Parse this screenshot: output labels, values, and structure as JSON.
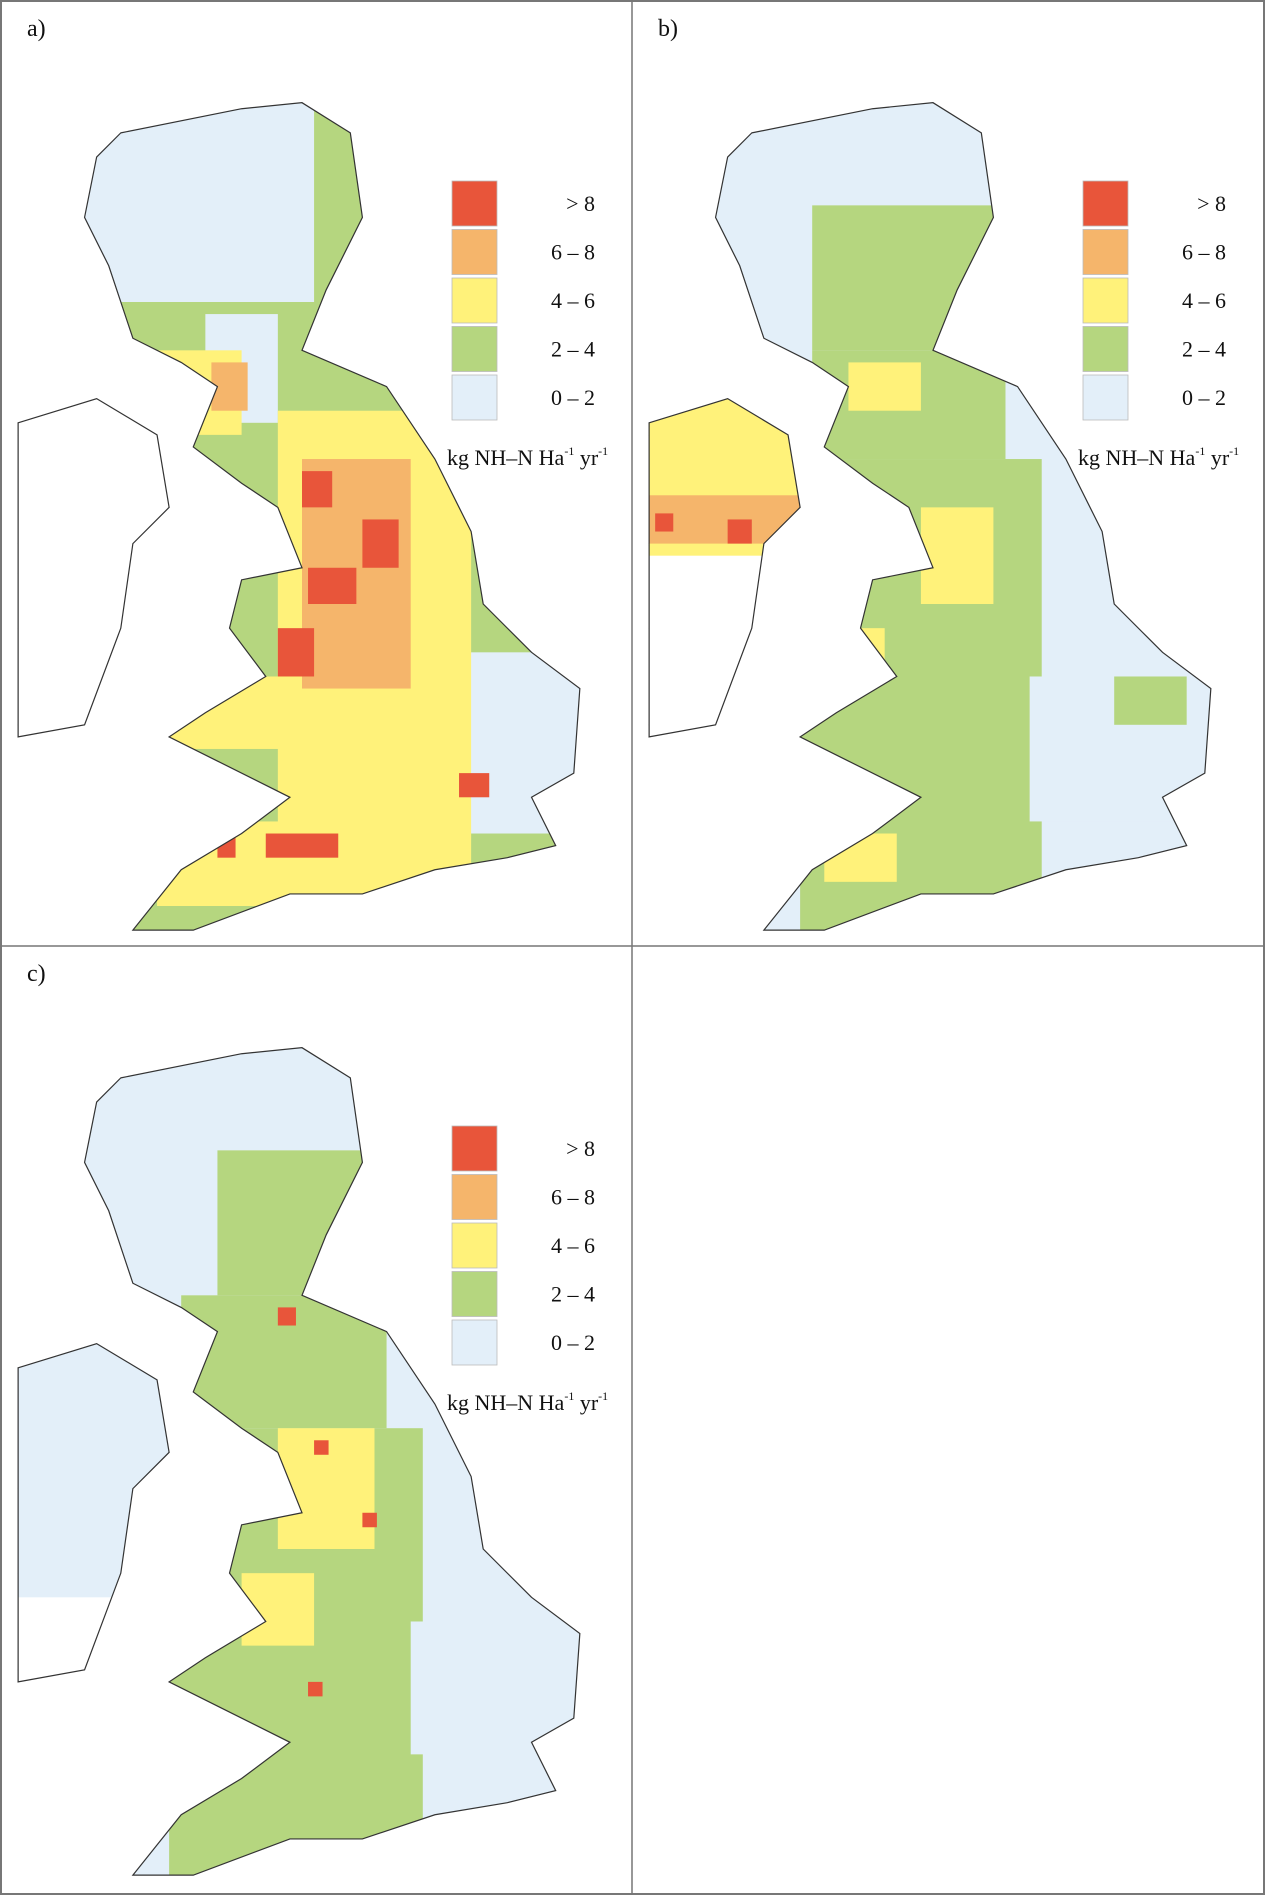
{
  "panels": [
    {
      "label": "a)"
    },
    {
      "label": "b)"
    },
    {
      "label": "c)"
    }
  ],
  "legend": {
    "items": [
      {
        "label": "> 8",
        "color": "#e8553a"
      },
      {
        "label": "6 – 8",
        "color": "#f5b56b"
      },
      {
        "label": "4 – 6",
        "color": "#fff27a"
      },
      {
        "label": "2 – 4",
        "color": "#b5d67f"
      },
      {
        "label": "0 – 2",
        "color": "#e3eff9"
      }
    ],
    "unit": {
      "text1": "kg NH–N Ha",
      "sup1": "-1",
      "text2": " yr",
      "sup2": "-1"
    }
  }
}
